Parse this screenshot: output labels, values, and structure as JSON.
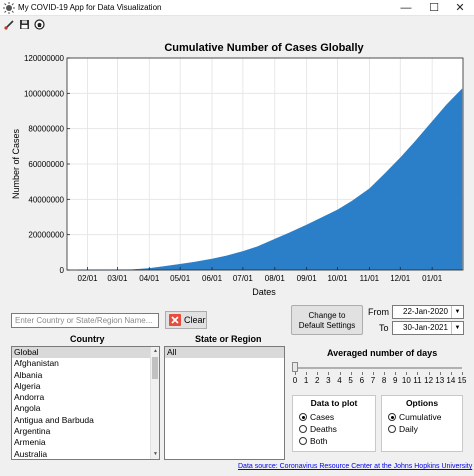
{
  "window": {
    "title": "My COVID-19 App for Data Visualization",
    "minimize_glyph": "—",
    "maximize_glyph": "☐",
    "close_glyph": "✕"
  },
  "toolbar": {
    "icons": [
      "brush-icon",
      "save-icon",
      "github-icon"
    ]
  },
  "chart_data": {
    "type": "area",
    "title": "Cumulative Number of Cases Globally",
    "xlabel": "Dates",
    "ylabel": "Number of Cases",
    "ylim": [
      0,
      120000000
    ],
    "yticks": [
      0,
      20000000,
      40000000,
      60000000,
      80000000,
      100000000,
      120000000
    ],
    "ytick_labels": [
      "0",
      "20000000",
      "40000000",
      "60000000",
      "80000000",
      "100000000",
      "120000000"
    ],
    "xticks": [
      "2020-02-01",
      "2020-03-01",
      "2020-04-01",
      "2020-05-01",
      "2020-06-01",
      "2020-07-01",
      "2020-08-01",
      "2020-09-01",
      "2020-10-01",
      "2020-11-01",
      "2020-12-01",
      "2021-01-01"
    ],
    "xtick_labels": [
      "02/01",
      "03/01",
      "04/01",
      "05/01",
      "06/01",
      "07/01",
      "08/01",
      "09/01",
      "10/01",
      "11/01",
      "12/01",
      "01/01"
    ],
    "xlim": [
      "2020-01-12",
      "2021-01-31"
    ],
    "grid": true,
    "series": [
      {
        "color": "#2b7fc8",
        "x": [
          "2020-01-22",
          "2020-02-01",
          "2020-03-01",
          "2020-03-15",
          "2020-04-01",
          "2020-04-15",
          "2020-05-01",
          "2020-05-15",
          "2020-06-01",
          "2020-06-15",
          "2020-07-01",
          "2020-07-15",
          "2020-08-01",
          "2020-08-15",
          "2020-09-01",
          "2020-09-15",
          "2020-10-01",
          "2020-10-15",
          "2020-11-01",
          "2020-11-15",
          "2020-12-01",
          "2020-12-15",
          "2021-01-01",
          "2021-01-15",
          "2021-01-30"
        ],
        "y": [
          600,
          12000,
          88000,
          170000,
          900000,
          2000000,
          3300000,
          4500000,
          6200000,
          8000000,
          10500000,
          13200000,
          17500000,
          21000000,
          25500000,
          29500000,
          34000000,
          39000000,
          46000000,
          54000000,
          63500000,
          72500000,
          84000000,
          93500000,
          102500000
        ]
      }
    ]
  },
  "search": {
    "placeholder": "Enter Country or State/Region Name...",
    "value": ""
  },
  "clear_button": {
    "label": "Clear"
  },
  "change_button": {
    "line1": "Change to",
    "line2": "Default Settings"
  },
  "dates": {
    "from_label": "From",
    "from_value": "22-Jan-2020",
    "to_label": "To",
    "to_value": "30-Jan-2021"
  },
  "country": {
    "title": "Country",
    "items": [
      "Global",
      "Afghanistan",
      "Albania",
      "Algeria",
      "Andorra",
      "Angola",
      "Antigua and Barbuda",
      "Argentina",
      "Armenia",
      "Australia"
    ],
    "selected": 0
  },
  "state": {
    "title": "State or Region",
    "items": [
      "All"
    ],
    "selected": 0
  },
  "averaged": {
    "title": "Averaged number of days",
    "min": 0,
    "max": 15,
    "value": 0,
    "ticks": [
      "0",
      "1",
      "2",
      "3",
      "4",
      "5",
      "6",
      "7",
      "8",
      "9",
      "10",
      "11",
      "12",
      "13",
      "14",
      "15"
    ]
  },
  "data_to_plot": {
    "title": "Data to plot",
    "options": [
      "Cases",
      "Deaths",
      "Both"
    ],
    "selected": 0
  },
  "options": {
    "title": "Options",
    "options": [
      "Cumulative",
      "Daily"
    ],
    "selected": 0
  },
  "source_link": {
    "text": "Data source: Coronavirus Resource Center at the Johns Hopkins University"
  }
}
